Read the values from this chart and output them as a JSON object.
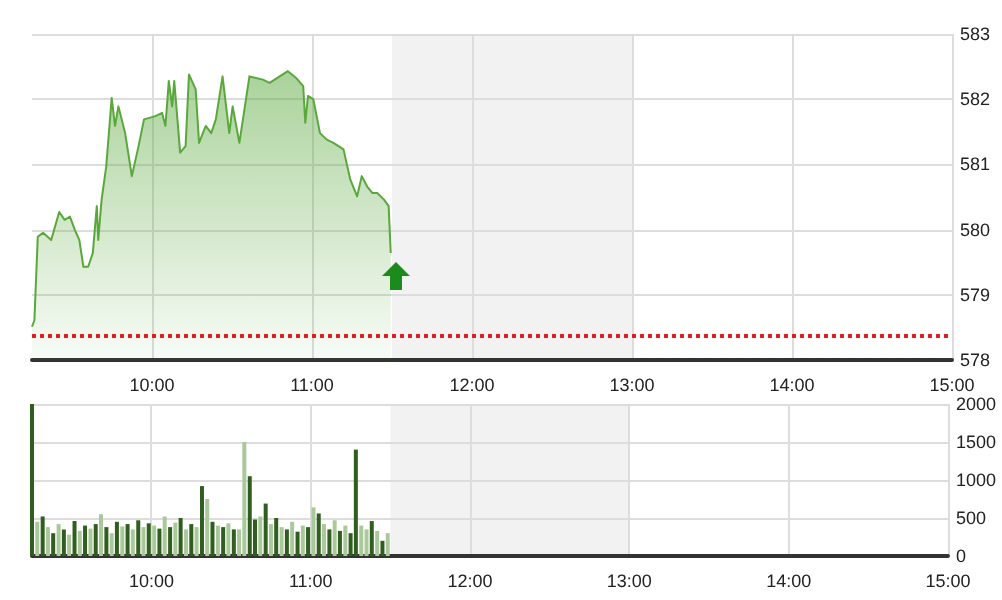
{
  "chart_data": [
    {
      "type": "area",
      "color": "#5aa83c",
      "marker": "none",
      "grid": true,
      "xlim": [
        9.25,
        15
      ],
      "xticks": [
        {
          "value": 10,
          "label": "10:00"
        },
        {
          "value": 11,
          "label": "11:00"
        },
        {
          "value": 12,
          "label": "12:00"
        },
        {
          "value": 13,
          "label": "13:00"
        },
        {
          "value": 14,
          "label": "14:00"
        },
        {
          "value": 15,
          "label": "15:00"
        }
      ],
      "ylim": [
        578,
        583
      ],
      "yticks": [
        578,
        579,
        580,
        581,
        582,
        583
      ],
      "bands": [
        {
          "axis": "x",
          "from": 11.5,
          "to": 13,
          "color": "#f2f2f2"
        }
      ],
      "ref_lines": [
        {
          "axis": "y",
          "value": 578.37,
          "color": "#e02020",
          "line_style": "dotted"
        }
      ],
      "x": [
        9.25,
        9.265,
        9.286,
        9.319,
        9.37,
        9.42,
        9.454,
        9.487,
        9.517,
        9.546,
        9.571,
        9.601,
        9.63,
        9.655,
        9.664,
        9.685,
        9.714,
        9.748,
        9.769,
        9.79,
        9.832,
        9.874,
        9.916,
        9.95,
        10.021,
        10.063,
        10.084,
        10.105,
        10.126,
        10.139,
        10.176,
        10.21,
        10.231,
        10.273,
        10.294,
        10.336,
        10.37,
        10.399,
        10.441,
        10.483,
        10.504,
        10.546,
        10.609,
        10.693,
        10.735,
        10.798,
        10.849,
        10.903,
        10.945,
        10.958,
        10.975,
        11.008,
        11.05,
        11.092,
        11.134,
        11.197,
        11.239,
        11.282,
        11.311,
        11.345,
        11.378,
        11.408,
        11.45,
        11.479,
        11.492
      ],
      "values": [
        578.51,
        578.61,
        579.89,
        579.95,
        579.84,
        580.27,
        580.15,
        580.2,
        580.0,
        579.84,
        579.43,
        579.43,
        579.64,
        580.36,
        579.84,
        580.46,
        580.97,
        582.02,
        581.59,
        581.89,
        581.48,
        580.82,
        581.28,
        581.69,
        581.74,
        581.79,
        581.59,
        582.28,
        581.89,
        582.28,
        581.18,
        581.28,
        582.38,
        582.15,
        581.33,
        581.59,
        581.48,
        581.69,
        582.35,
        581.48,
        581.89,
        581.33,
        582.35,
        582.3,
        582.25,
        582.35,
        582.43,
        582.32,
        582.2,
        581.64,
        582.05,
        582.0,
        581.48,
        581.38,
        581.33,
        581.23,
        580.77,
        580.51,
        580.82,
        580.66,
        580.56,
        580.56,
        580.46,
        580.36,
        579.64
      ]
    },
    {
      "type": "bar",
      "grid": true,
      "xlim": [
        9.25,
        15
      ],
      "xticks": [
        {
          "value": 10,
          "label": "10:00"
        },
        {
          "value": 11,
          "label": "11:00"
        },
        {
          "value": 12,
          "label": "12:00"
        },
        {
          "value": 13,
          "label": "13:00"
        },
        {
          "value": 14,
          "label": "14:00"
        },
        {
          "value": 15,
          "label": "15:00"
        }
      ],
      "ylim": [
        0,
        2000
      ],
      "yticks": [
        0,
        500,
        1000,
        1500,
        2000
      ],
      "bands": [
        {
          "axis": "x",
          "from": 11.5,
          "to": 13,
          "color": "#f2f2f2"
        }
      ],
      "series": [
        {
          "color": "#2f5e1f",
          "x": [
            9.25,
            9.317,
            9.383,
            9.45,
            9.517,
            9.583,
            9.65,
            9.717,
            9.783,
            9.85,
            9.917,
            9.983,
            10.05,
            10.117,
            10.183,
            10.25,
            10.317,
            10.383,
            10.45,
            10.517,
            10.617,
            10.65,
            10.717,
            10.783,
            10.85,
            10.917,
            10.983,
            11.05,
            11.117,
            11.183,
            11.25,
            11.283,
            11.383,
            11.45
          ],
          "values": [
            2000,
            520,
            300,
            350,
            460,
            400,
            420,
            380,
            450,
            420,
            470,
            430,
            360,
            380,
            500,
            420,
            920,
            450,
            380,
            350,
            1050,
            480,
            690,
            500,
            350,
            320,
            380,
            560,
            350,
            330,
            300,
            1400,
            460,
            200
          ]
        },
        {
          "color": "#a9c99b",
          "x": [
            9.283,
            9.35,
            9.417,
            9.483,
            9.55,
            9.617,
            9.683,
            9.75,
            9.817,
            9.883,
            9.95,
            10.017,
            10.083,
            10.15,
            10.217,
            10.283,
            10.35,
            10.417,
            10.483,
            10.55,
            10.583,
            10.683,
            10.75,
            10.817,
            10.883,
            10.95,
            11.017,
            11.083,
            11.15,
            11.217,
            11.317,
            11.35,
            11.417,
            11.483
          ],
          "values": [
            450,
            380,
            420,
            280,
            330,
            360,
            550,
            300,
            390,
            350,
            380,
            400,
            520,
            440,
            350,
            380,
            750,
            400,
            430,
            350,
            1500,
            520,
            420,
            380,
            450,
            400,
            640,
            420,
            470,
            400,
            400,
            350,
            330,
            300
          ]
        }
      ]
    }
  ]
}
